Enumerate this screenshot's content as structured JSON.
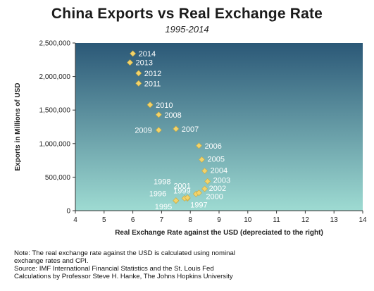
{
  "chart_data": {
    "type": "scatter",
    "title": "China Exports vs Real Exchange Rate",
    "subtitle": "1995-2014",
    "xlabel": "Real Exchange Rate against the USD (depreciated to the right)",
    "ylabel": "Exports in Millions of USD",
    "xlim": [
      4,
      14
    ],
    "ylim": [
      0,
      2500000
    ],
    "x_ticks": [
      "4",
      "5",
      "6",
      "7",
      "8",
      "9",
      "10",
      "11",
      "12",
      "13",
      "14"
    ],
    "y_ticks": [
      "0",
      "500,000",
      "1,000,000",
      "1,500,000",
      "2,000,000",
      "2,500,000"
    ],
    "grid": false,
    "point_color": "#f2d36b",
    "background_top": "#2b5877",
    "background_bottom": "#9edbd2",
    "points": [
      {
        "label": "1995",
        "x": 7.5,
        "y": 149000
      },
      {
        "label": "1996",
        "x": 7.5,
        "y": 151000
      },
      {
        "label": "1997",
        "x": 7.9,
        "y": 183000
      },
      {
        "label": "1998",
        "x": 7.8,
        "y": 184000
      },
      {
        "label": "1999",
        "x": 7.9,
        "y": 195000
      },
      {
        "label": "2000",
        "x": 8.2,
        "y": 249000
      },
      {
        "label": "2001",
        "x": 8.3,
        "y": 266000
      },
      {
        "label": "2002",
        "x": 8.5,
        "y": 326000
      },
      {
        "label": "2003",
        "x": 8.6,
        "y": 438000
      },
      {
        "label": "2004",
        "x": 8.5,
        "y": 593000
      },
      {
        "label": "2005",
        "x": 8.4,
        "y": 762000
      },
      {
        "label": "2006",
        "x": 8.3,
        "y": 969000
      },
      {
        "label": "2007",
        "x": 7.5,
        "y": 1220000
      },
      {
        "label": "2008",
        "x": 6.9,
        "y": 1431000
      },
      {
        "label": "2009",
        "x": 6.9,
        "y": 1202000
      },
      {
        "label": "2010",
        "x": 6.6,
        "y": 1578000
      },
      {
        "label": "2011",
        "x": 6.2,
        "y": 1898000
      },
      {
        "label": "2012",
        "x": 6.2,
        "y": 2049000
      },
      {
        "label": "2013",
        "x": 5.9,
        "y": 2209000
      },
      {
        "label": "2014",
        "x": 6.0,
        "y": 2342000
      }
    ]
  },
  "footnote": {
    "line1": "Note: The real exchange rate against the USD is calculated using nominal",
    "line2": "exchange rates and CPI.",
    "line3": "Source: IMF International Financial Statistics and the St. Louis Fed",
    "line4": "Calculations by Professor Steve H. Hanke, The Johns Hopkins University"
  }
}
